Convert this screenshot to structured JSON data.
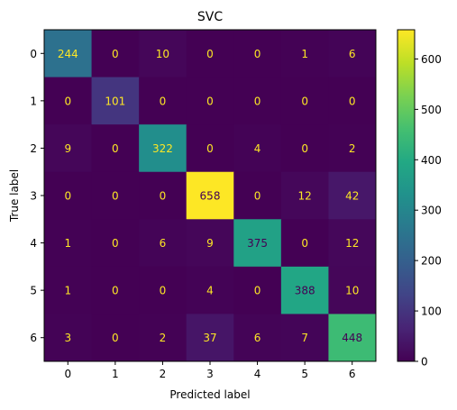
{
  "chart_data": {
    "type": "heatmap",
    "title": "SVC",
    "xlabel": "Predicted label",
    "ylabel": "True label",
    "x_categories": [
      "0",
      "1",
      "2",
      "3",
      "4",
      "5",
      "6"
    ],
    "y_categories": [
      "0",
      "1",
      "2",
      "3",
      "4",
      "5",
      "6"
    ],
    "matrix": [
      [
        244,
        0,
        10,
        0,
        0,
        1,
        6
      ],
      [
        0,
        101,
        0,
        0,
        0,
        0,
        0
      ],
      [
        9,
        0,
        322,
        0,
        4,
        0,
        2
      ],
      [
        0,
        0,
        0,
        658,
        0,
        12,
        42
      ],
      [
        1,
        0,
        6,
        9,
        375,
        0,
        12
      ],
      [
        1,
        0,
        0,
        4,
        0,
        388,
        10
      ],
      [
        3,
        0,
        2,
        37,
        6,
        7,
        448
      ]
    ],
    "colormap": "viridis",
    "colorbar": {
      "min": 0,
      "max": 658,
      "ticks": [
        0,
        100,
        200,
        300,
        400,
        500,
        600
      ]
    },
    "annotation_colors": {
      "on_dark": "#fde725",
      "on_light": "#440154"
    }
  }
}
